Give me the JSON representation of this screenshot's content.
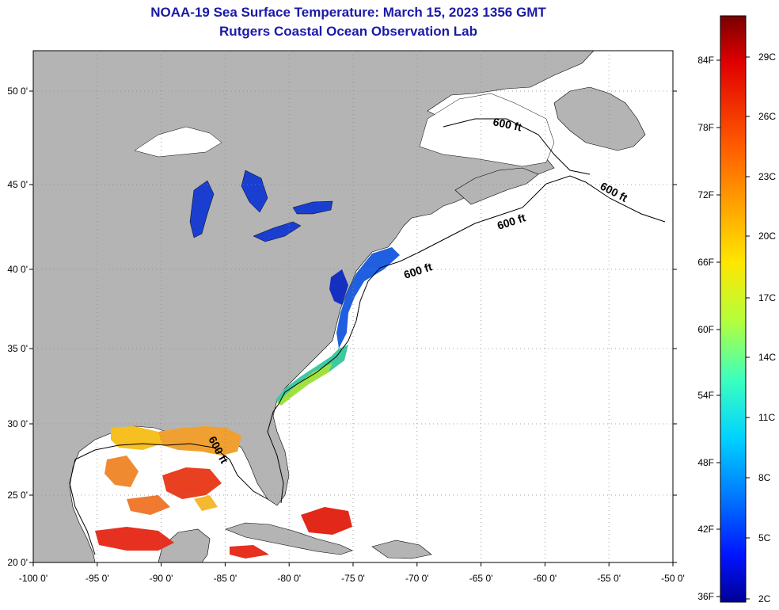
{
  "title": {
    "line1": "NOAA-19 Sea Surface Temperature:  March 15, 2023 1356 GMT",
    "line2": "Rutgers Coastal Ocean Observation Lab"
  },
  "map": {
    "lon_ticks": [
      "-100 0'",
      "-95 0'",
      "-90 0'",
      "-85 0'",
      "-80 0'",
      "-75 0'",
      "-70 0'",
      "-65 0'",
      "-60 0'",
      "-55 0'",
      "-50 0'"
    ],
    "lat_ticks": [
      "50 0'",
      "45 0'",
      "40 0'",
      "35 0'",
      "30 0'",
      "25 0'",
      "20 0'"
    ],
    "contour_label": "600 ft",
    "land_color": "#b4b4b4",
    "ocean_nodata_color": "#ffffff"
  },
  "colorbar": {
    "fahrenheit_labels": [
      "84F",
      "78F",
      "72F",
      "66F",
      "60F",
      "54F",
      "48F",
      "42F",
      "36F"
    ],
    "celsius_labels": [
      "29C",
      "26C",
      "23C",
      "20C",
      "17C",
      "14C",
      "11C",
      "8C",
      "5C",
      "2C"
    ],
    "colors": [
      "#7a0000",
      "#e00000",
      "#ff5a00",
      "#ffa000",
      "#ffe600",
      "#b4ff3c",
      "#3cffbe",
      "#00d2ff",
      "#0078ff",
      "#0014ff",
      "#000096"
    ]
  }
}
